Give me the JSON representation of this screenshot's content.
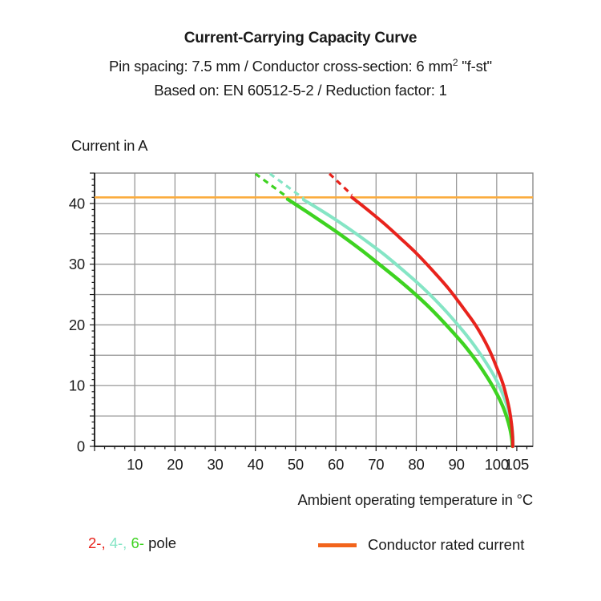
{
  "header": {
    "title": "Current-Carrying Capacity Curve",
    "subtitle1": {
      "pre": "Pin spacing: 7.5 mm / Conductor cross-section: 6 mm",
      "sup": "2",
      "post": " \"f-st\""
    },
    "subtitle2": "Based on: EN 60512-5-2 / Reduction factor: 1"
  },
  "chart_data": {
    "type": "line",
    "title": "Current-Carrying Capacity Curve",
    "xlabel": "Ambient operating temperature in °C",
    "ylabel": "Current in A",
    "xlim": [
      0,
      109
    ],
    "ylim": [
      0,
      45
    ],
    "x_major_ticks": [
      10,
      20,
      30,
      40,
      50,
      60,
      70,
      80,
      90,
      100,
      105
    ],
    "y_major_ticks": [
      0,
      10,
      20,
      30,
      40
    ],
    "x_grid_step": 10,
    "y_grid_step": 5,
    "x_minor_tick_step": 2.5,
    "y_minor_tick_step": 1,
    "grid": true,
    "legend_position": "bottom",
    "rated_current": 41,
    "colors": {
      "grid": "#999999",
      "border": "#8c8c8c",
      "axis": "#1a1a1a",
      "rated_line": "#fbac3e",
      "red": "#e8231c",
      "cyan": "#85e5c5",
      "green": "#3ed321"
    },
    "series": [
      {
        "name": "4-pole extrapolated",
        "style": "dashed",
        "color": "#85e5c5",
        "width": 3.2,
        "points": [
          [
            43.6,
            44.9
          ],
          [
            52,
            40.8
          ]
        ]
      },
      {
        "name": "6-pole extrapolated",
        "style": "dashed",
        "color": "#3ed321",
        "width": 3.2,
        "points": [
          [
            40,
            44.9
          ],
          [
            48,
            41.0
          ]
        ]
      },
      {
        "name": "2-pole extrapolated",
        "style": "dashed",
        "color": "#e8231c",
        "width": 3.2,
        "points": [
          [
            58.4,
            44.9
          ],
          [
            64,
            41.4
          ]
        ]
      },
      {
        "name": "4-pole",
        "style": "solid",
        "color": "#85e5c5",
        "width": 4,
        "points": [
          [
            52,
            40.6
          ],
          [
            56,
            39.0
          ],
          [
            60,
            37.3
          ],
          [
            64,
            35.5
          ],
          [
            68,
            33.6
          ],
          [
            72,
            31.6
          ],
          [
            76,
            29.4
          ],
          [
            80,
            27.1
          ],
          [
            84,
            24.6
          ],
          [
            88,
            21.8
          ],
          [
            92,
            18.7
          ],
          [
            95,
            16.1
          ],
          [
            98,
            13.1
          ],
          [
            100,
            10.8
          ],
          [
            101.5,
            8.6
          ],
          [
            102.5,
            6.8
          ],
          [
            103.3,
            5.0
          ],
          [
            103.8,
            3.1
          ],
          [
            104,
            1.8
          ],
          [
            104.1,
            0
          ]
        ]
      },
      {
        "name": "6-pole",
        "style": "solid",
        "color": "#3ed321",
        "width": 4.4,
        "points": [
          [
            48,
            40.7
          ],
          [
            54,
            38.1
          ],
          [
            60,
            35.4
          ],
          [
            66,
            32.5
          ],
          [
            70,
            30.4
          ],
          [
            76,
            27.2
          ],
          [
            80,
            24.9
          ],
          [
            84,
            22.4
          ],
          [
            88,
            19.6
          ],
          [
            92,
            16.6
          ],
          [
            95,
            14.0
          ],
          [
            98,
            11.0
          ],
          [
            100,
            8.7
          ],
          [
            101.5,
            6.6
          ],
          [
            102.5,
            4.8
          ],
          [
            103.3,
            2.9
          ],
          [
            103.8,
            1.0
          ],
          [
            103.9,
            0
          ]
        ]
      },
      {
        "name": "2-pole",
        "style": "solid",
        "color": "#e8231c",
        "width": 4,
        "points": [
          [
            64,
            41.0
          ],
          [
            68,
            38.9
          ],
          [
            72,
            36.7
          ],
          [
            76,
            34.3
          ],
          [
            80,
            31.8
          ],
          [
            84,
            29.0
          ],
          [
            88,
            26.0
          ],
          [
            92,
            22.5
          ],
          [
            95,
            19.7
          ],
          [
            98,
            16.1
          ],
          [
            100,
            13.0
          ],
          [
            101.5,
            10.4
          ],
          [
            102.5,
            8.0
          ],
          [
            103.2,
            5.9
          ],
          [
            103.7,
            3.6
          ],
          [
            103.95,
            1.5
          ],
          [
            104,
            0
          ]
        ]
      }
    ]
  },
  "legend": {
    "poles": [
      {
        "label": "2-,",
        "color": "#e8231c"
      },
      {
        "label": "4-,",
        "color": "#85e5c5"
      },
      {
        "label": "6-",
        "color": "#3ed321"
      }
    ],
    "poles_suffix": "pole",
    "rated_label": "Conductor rated current",
    "rated_color": "#f2641c"
  }
}
